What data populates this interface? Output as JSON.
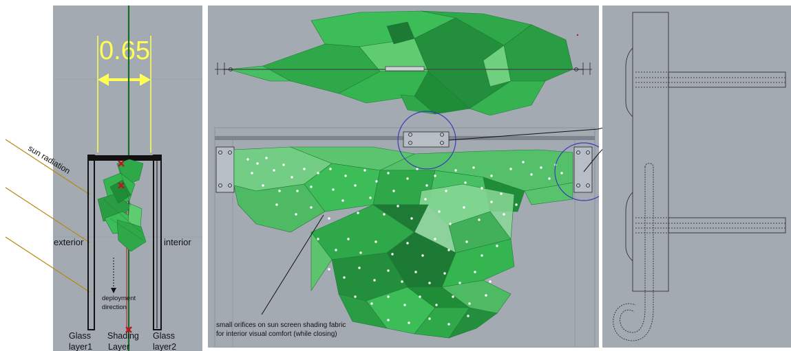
{
  "colors": {
    "viewport_bg": "#a3aab2",
    "fabric_green": "#2fa84a",
    "fabric_green_dark": "#1f7a35",
    "fabric_green_light": "#6fd080",
    "dimension_yellow": "#ffff55",
    "sun_ray": "#b8860b",
    "marker_red": "#c0141e",
    "circle_blue": "#3a3ab8",
    "frame_black": "#111111"
  },
  "section": {
    "dimension_value": "0.65",
    "sun_label": "sun radiation",
    "exterior_label": "exterior",
    "interior_label": "interior",
    "deployment_label_line1": "deployment",
    "deployment_label_line2": "direction",
    "glass1_line1": "Glass",
    "glass1_line2": "layer1",
    "shading_line1": "Shading",
    "shading_line2": "Layer",
    "glass2_line1": "Glass",
    "glass2_line2": "layer2"
  },
  "elevation": {
    "annotation_line1": "small orifices on sun screen shading fabric",
    "annotation_line2": "for interior visual comfort (while closing)"
  },
  "detail": {}
}
